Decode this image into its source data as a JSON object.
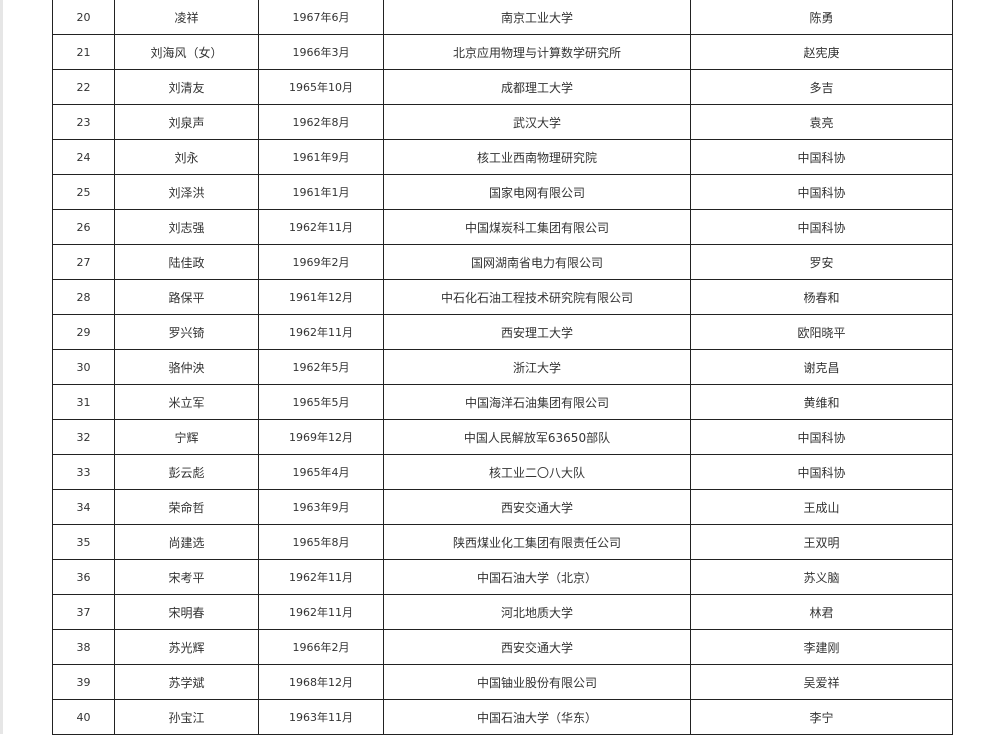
{
  "table": {
    "rows": [
      [
        "20",
        "凌祥",
        "1967年6月",
        "南京工业大学",
        "陈勇"
      ],
      [
        "21",
        "刘海风（女）",
        "1966年3月",
        "北京应用物理与计算数学研究所",
        "赵宪庚"
      ],
      [
        "22",
        "刘清友",
        "1965年10月",
        "成都理工大学",
        "多吉"
      ],
      [
        "23",
        "刘泉声",
        "1962年8月",
        "武汉大学",
        "袁亮"
      ],
      [
        "24",
        "刘永",
        "1961年9月",
        "核工业西南物理研究院",
        "中国科协"
      ],
      [
        "25",
        "刘泽洪",
        "1961年1月",
        "国家电网有限公司",
        "中国科协"
      ],
      [
        "26",
        "刘志强",
        "1962年11月",
        "中国煤炭科工集团有限公司",
        "中国科协"
      ],
      [
        "27",
        "陆佳政",
        "1969年2月",
        "国网湖南省电力有限公司",
        "罗安"
      ],
      [
        "28",
        "路保平",
        "1961年12月",
        "中石化石油工程技术研究院有限公司",
        "杨春和"
      ],
      [
        "29",
        "罗兴锜",
        "1962年11月",
        "西安理工大学",
        "欧阳晓平"
      ],
      [
        "30",
        "骆仲泱",
        "1962年5月",
        "浙江大学",
        "谢克昌"
      ],
      [
        "31",
        "米立军",
        "1965年5月",
        "中国海洋石油集团有限公司",
        "黄维和"
      ],
      [
        "32",
        "宁辉",
        "1969年12月",
        "中国人民解放军63650部队",
        "中国科协"
      ],
      [
        "33",
        "彭云彪",
        "1965年4月",
        "核工业二〇八大队",
        "中国科协"
      ],
      [
        "34",
        "荣命哲",
        "1963年9月",
        "西安交通大学",
        "王成山"
      ],
      [
        "35",
        "尚建选",
        "1965年8月",
        "陕西煤业化工集团有限责任公司",
        "王双明"
      ],
      [
        "36",
        "宋考平",
        "1962年11月",
        "中国石油大学（北京）",
        "苏义脑"
      ],
      [
        "37",
        "宋明春",
        "1962年11月",
        "河北地质大学",
        "林君"
      ],
      [
        "38",
        "苏光辉",
        "1966年2月",
        "西安交通大学",
        "李建刚"
      ],
      [
        "39",
        "苏学斌",
        "1968年12月",
        "中国铀业股份有限公司",
        "吴爱祥"
      ],
      [
        "40",
        "孙宝江",
        "1963年11月",
        "中国石油大学（华东）",
        "李宁"
      ]
    ]
  }
}
